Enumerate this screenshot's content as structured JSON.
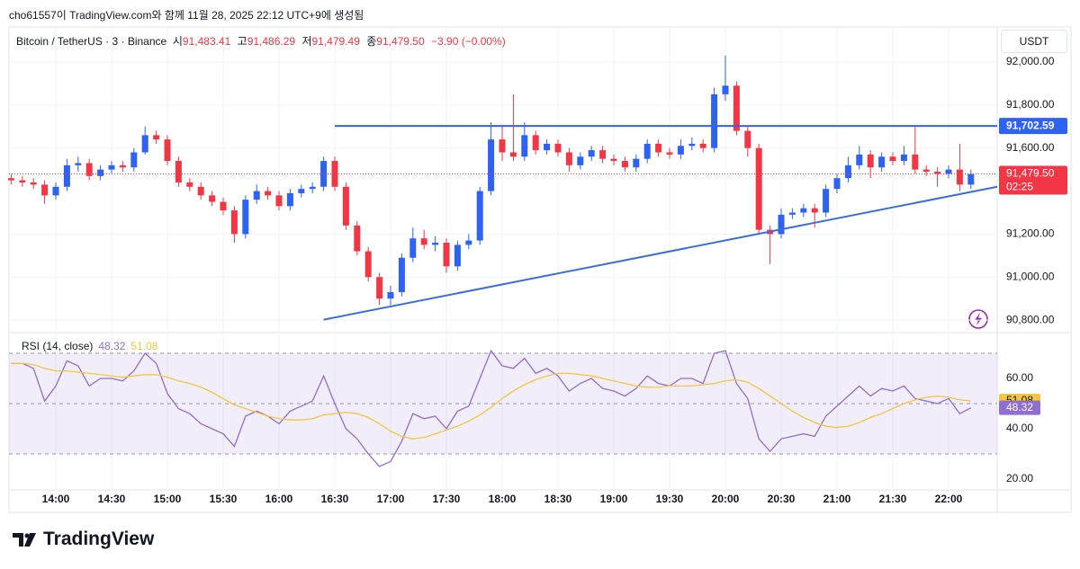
{
  "header": {
    "created": "cho61557이 TradingView.com와 함께 11월 28, 2025 22:12 UTC+9에 생성됨",
    "ohlc": [
      {
        "k": "시",
        "v": "91,483.41"
      },
      {
        "k": "고",
        "v": "91,486.29"
      },
      {
        "k": "저",
        "v": "91,479.49"
      },
      {
        "k": "종",
        "v": "91,479.50"
      }
    ],
    "change": "−3.90 (−0.00%)",
    "brand": "TradingView"
  },
  "chart_data": [
    {
      "type": "candlestick",
      "title": "Bitcoin / TetherUS · 3 · Binance",
      "unit": "USDT",
      "x": [
        "13:36",
        "13:42",
        "13:48",
        "13:54",
        "14:00",
        "14:06",
        "14:12",
        "14:18",
        "14:24",
        "14:30",
        "14:36",
        "14:42",
        "14:48",
        "14:54",
        "15:00",
        "15:06",
        "15:12",
        "15:18",
        "15:24",
        "15:30",
        "15:36",
        "15:42",
        "15:48",
        "15:54",
        "16:00",
        "16:06",
        "16:12",
        "16:18",
        "16:24",
        "16:30",
        "16:36",
        "16:42",
        "16:48",
        "16:54",
        "17:00",
        "17:06",
        "17:12",
        "17:18",
        "17:24",
        "17:30",
        "17:36",
        "17:42",
        "17:48",
        "17:54",
        "18:00",
        "18:06",
        "18:12",
        "18:18",
        "18:24",
        "18:30",
        "18:36",
        "18:42",
        "18:48",
        "18:54",
        "19:00",
        "19:06",
        "19:12",
        "19:18",
        "19:24",
        "19:30",
        "19:36",
        "19:42",
        "19:48",
        "19:54",
        "20:00",
        "20:06",
        "20:12",
        "20:18",
        "20:24",
        "20:30",
        "20:36",
        "20:42",
        "20:48",
        "20:54",
        "21:00",
        "21:06",
        "21:12",
        "21:18",
        "21:24",
        "21:30",
        "21:36",
        "21:42",
        "21:48",
        "21:54",
        "22:00",
        "22:06",
        "22:12"
      ],
      "open": [
        91460,
        91450,
        91440,
        91430,
        91380,
        91420,
        91520,
        91530,
        91470,
        91500,
        91520,
        91510,
        91580,
        91660,
        91640,
        91540,
        91440,
        91420,
        91380,
        91350,
        91310,
        91200,
        91360,
        91400,
        91380,
        91330,
        91390,
        91410,
        91420,
        91540,
        91420,
        91240,
        91120,
        91000,
        90900,
        90930,
        91090,
        91180,
        91150,
        91160,
        91050,
        91150,
        91170,
        91400,
        91640,
        91580,
        91560,
        91660,
        91590,
        91620,
        91580,
        91520,
        91560,
        91590,
        91550,
        91540,
        91510,
        91550,
        91620,
        91580,
        91570,
        91610,
        91620,
        91600,
        91850,
        91890,
        91680,
        91600,
        91220,
        91200,
        91290,
        91300,
        91320,
        91300,
        91410,
        91460,
        91520,
        91570,
        91510,
        91560,
        91540,
        91570,
        91500,
        91490,
        91480,
        91500,
        91430
      ],
      "high": [
        91480,
        91470,
        91460,
        91450,
        91440,
        91550,
        91560,
        91550,
        91520,
        91540,
        91540,
        91600,
        91700,
        91680,
        91660,
        91560,
        91460,
        91440,
        91400,
        91370,
        91330,
        91380,
        91430,
        91420,
        91400,
        91410,
        91430,
        91440,
        91560,
        91560,
        91440,
        91260,
        91140,
        91020,
        90960,
        91110,
        91230,
        91220,
        91190,
        91180,
        91170,
        91200,
        91420,
        91720,
        91700,
        91850,
        91720,
        91680,
        91640,
        91640,
        91600,
        91580,
        91610,
        91610,
        91570,
        91560,
        91570,
        91640,
        91640,
        91600,
        91640,
        91650,
        91640,
        91880,
        92030,
        91910,
        91700,
        91620,
        91240,
        91320,
        91320,
        91340,
        91340,
        91430,
        91480,
        91560,
        91610,
        91590,
        91580,
        91580,
        91610,
        91700,
        91520,
        91510,
        91520,
        91620,
        91500
      ],
      "low": [
        91430,
        91420,
        91410,
        91340,
        91360,
        91400,
        91490,
        91450,
        91450,
        91480,
        91490,
        91490,
        91570,
        91620,
        91520,
        91420,
        91400,
        91360,
        91330,
        91290,
        91160,
        91180,
        91340,
        91360,
        91310,
        91310,
        91370,
        91390,
        91400,
        91400,
        91220,
        91100,
        90980,
        90870,
        90870,
        90910,
        91070,
        91130,
        91120,
        91020,
        91030,
        91130,
        91150,
        91380,
        91540,
        91540,
        91540,
        91570,
        91570,
        91560,
        91490,
        91500,
        91540,
        91530,
        91520,
        91490,
        91490,
        91530,
        91560,
        91550,
        91550,
        91590,
        91580,
        91580,
        91820,
        91660,
        91560,
        91200,
        91060,
        91180,
        91270,
        91280,
        91230,
        91280,
        91390,
        91440,
        91500,
        91460,
        91490,
        91520,
        91520,
        91480,
        91470,
        91420,
        91460,
        91400,
        91410
      ],
      "close": [
        91450,
        91440,
        91430,
        91380,
        91420,
        91520,
        91530,
        91470,
        91500,
        91520,
        91510,
        91580,
        91660,
        91640,
        91540,
        91440,
        91420,
        91380,
        91350,
        91310,
        91200,
        91360,
        91400,
        91380,
        91330,
        91390,
        91410,
        91420,
        91540,
        91420,
        91240,
        91120,
        91000,
        90900,
        90930,
        91090,
        91180,
        91150,
        91160,
        91050,
        91150,
        91170,
        91400,
        91640,
        91580,
        91560,
        91660,
        91590,
        91620,
        91580,
        91520,
        91560,
        91590,
        91550,
        91540,
        91510,
        91550,
        91620,
        91580,
        91570,
        91610,
        91620,
        91600,
        91850,
        91890,
        91680,
        91600,
        91220,
        91200,
        91290,
        91300,
        91320,
        91300,
        91410,
        91460,
        91520,
        91570,
        91510,
        91560,
        91540,
        91570,
        91500,
        91490,
        91480,
        91500,
        91430,
        91479.5
      ],
      "up_color": "#2e62f2",
      "down_color": "#f23645",
      "last_label": "91,479.50",
      "countdown": "02:25",
      "ylim": [
        90742,
        92163
      ],
      "yticks": [
        {
          "value": 90800,
          "label": "90,800.00"
        },
        {
          "value": 91000,
          "label": "91,000.00"
        },
        {
          "value": 91200,
          "label": "91,200.00"
        },
        {
          "value": 91600,
          "label": "91,600.00"
        },
        {
          "value": 91800,
          "label": "91,800.00"
        },
        {
          "value": 92000,
          "label": "92,000.00"
        }
      ],
      "xticks": [
        "14:00",
        "14:30",
        "15:00",
        "15:30",
        "16:00",
        "16:30",
        "17:00",
        "17:30",
        "18:00",
        "18:30",
        "19:00",
        "19:30",
        "20:00",
        "20:30",
        "21:00",
        "21:30",
        "22:00"
      ],
      "hlines": [
        {
          "value": 91702.59,
          "label": "91,702.59",
          "start": "16:30",
          "color": "#2e62f2"
        }
      ],
      "trendline": {
        "x": [
          "16:24",
          "22:12"
        ],
        "y": [
          90802,
          91396
        ],
        "color": "#3a6ed8"
      },
      "grid": true
    },
    {
      "type": "line",
      "title": "RSI (14, close)",
      "series": [
        {
          "color": "#8e6fd0",
          "values": [
            66,
            66,
            64,
            51,
            57,
            67,
            65,
            57,
            60,
            60,
            59,
            63,
            70,
            66,
            54,
            48,
            46,
            42,
            40,
            38,
            33,
            45,
            47,
            45,
            42,
            47,
            49,
            51,
            61,
            50,
            40,
            36,
            30,
            25,
            27,
            35,
            46,
            44,
            45,
            40,
            47,
            49,
            60,
            71,
            65,
            64,
            68,
            62,
            64,
            61,
            55,
            58,
            60,
            56,
            55,
            53,
            56,
            61,
            58,
            57,
            60,
            60,
            58,
            70,
            71,
            58,
            52,
            36,
            31,
            36,
            37,
            38,
            37,
            45,
            49,
            53,
            57,
            53,
            56,
            55,
            57,
            52,
            51,
            50,
            52,
            46,
            48.32
          ]
        },
        {
          "color": "#f5c542",
          "values": [
            66,
            66,
            65.5,
            64,
            63,
            63,
            62.5,
            62,
            61.5,
            61,
            60.5,
            61,
            61.5,
            61.5,
            60.5,
            59,
            58,
            56.5,
            54.5,
            52,
            49.5,
            48,
            46.5,
            45,
            44,
            43.5,
            43.5,
            44,
            45.5,
            46,
            46.5,
            46,
            44.5,
            42,
            39,
            37,
            36,
            36.5,
            38,
            39.5,
            41,
            43,
            45.5,
            48.5,
            52,
            55,
            57.5,
            59.5,
            61,
            62,
            62,
            61.5,
            61,
            60,
            59,
            58,
            57,
            56.5,
            56.5,
            57,
            57,
            57,
            57.5,
            58,
            59,
            59.5,
            58.5,
            56,
            53,
            50,
            47,
            44.5,
            42.5,
            41,
            40.5,
            41,
            42.5,
            44.5,
            46,
            48,
            50,
            51.5,
            52.5,
            53,
            52.5,
            51.5,
            51.08
          ]
        }
      ],
      "bands": [
        30,
        50,
        70
      ],
      "ylim": [
        15.7,
        77.5
      ],
      "yticks": [
        {
          "value": 20,
          "label": "20.00"
        },
        {
          "value": 40,
          "label": "40.00"
        },
        {
          "value": 60,
          "label": "60.00"
        }
      ]
    }
  ]
}
